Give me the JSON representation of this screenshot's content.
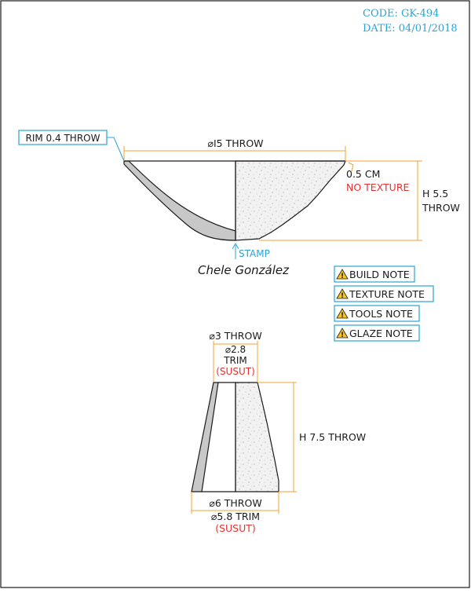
{
  "header": {
    "code": "CODE: GK-494",
    "date": "DATE: 04/01/2018",
    "color": "#29a3d6"
  },
  "bowl": {
    "rim_label": "RIM 0.4 THROW",
    "diameter_label": "⌀I5 THROW",
    "wall_label": "0.5 CM",
    "texture_label": "NO TEXTURE",
    "height_line1": "H 5.5",
    "height_line2": "THROW",
    "stamp_label": "STAMP",
    "signature": "Chele González"
  },
  "notes": [
    {
      "label": "BUILD NOTE",
      "icon": "warning-icon"
    },
    {
      "label": "TEXTURE NOTE",
      "icon": "warning-icon"
    },
    {
      "label": "TOOLS NOTE",
      "icon": "warning-icon"
    },
    {
      "label": "GLAZE NOTE",
      "icon": "warning-icon"
    }
  ],
  "foot": {
    "top_throw": "⌀3 THROW",
    "top_trim_1": "⌀2.8",
    "top_trim_2": "TRIM",
    "top_susut": "(SUSUT)",
    "height_label": "H 7.5 THROW",
    "bottom_throw": "⌀6 THROW",
    "bottom_trim": "⌀5.8 TRIM",
    "bottom_susut": "(SUSUT)"
  },
  "colors": {
    "dimension": "#f0a030",
    "callout": "#29a3d6",
    "warning_text": "#e8322e",
    "line": "#1a1a1a",
    "wall_fill": "#c8c8c8"
  }
}
